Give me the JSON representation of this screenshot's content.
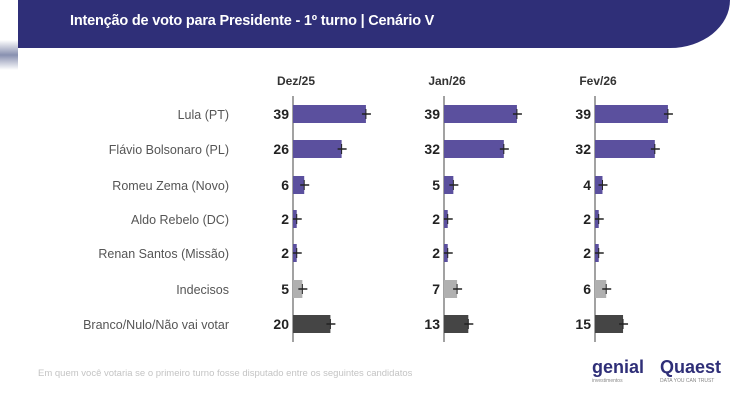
{
  "title": "Intenção de voto para Presidente - 1º turno | Cenário V",
  "footnote": "Em quem você votaria se o primeiro turno fosse disputado entre os seguintes candidatos",
  "logos": {
    "genial": "genial",
    "genial_sub": "investimentos",
    "quaest": "Quaest",
    "quaest_sub": "DATA YOU CAN TRUST"
  },
  "chart_data": {
    "type": "bar",
    "categories": [
      "Lula (PT)",
      "Flávio Bolsonaro (PL)",
      "Romeu Zema (Novo)",
      "Aldo Rebelo (DC)",
      "Renan Santos (Missão)",
      "Indecisos",
      "Branco/Nulo/Não vai votar"
    ],
    "series": [
      {
        "name": "Dez/25",
        "values": [
          39,
          26,
          6,
          2,
          2,
          5,
          20
        ]
      },
      {
        "name": "Jan/26",
        "values": [
          39,
          32,
          5,
          2,
          2,
          7,
          13
        ]
      },
      {
        "name": "Fev/26",
        "values": [
          39,
          32,
          4,
          2,
          2,
          6,
          15
        ]
      }
    ],
    "colors": {
      "candidate": "#5b509e",
      "undecided": "#b0b0b0",
      "blank": "#454545"
    },
    "error_bars": true
  }
}
